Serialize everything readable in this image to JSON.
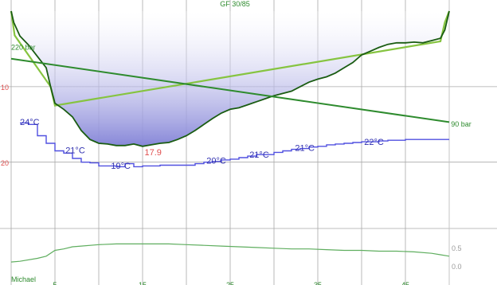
{
  "chart_data": {
    "type": "line",
    "title": "GF 30/85",
    "x_range": [
      0,
      50
    ],
    "x_tick_labels": [
      {
        "x": 5,
        "label": "5"
      },
      {
        "x": 15,
        "label": "15"
      },
      {
        "x": 25,
        "label": "25"
      },
      {
        "x": 35,
        "label": "35"
      },
      {
        "x": 45,
        "label": "45"
      }
    ],
    "depth_axis": {
      "range": [
        0,
        23.3
      ],
      "tick_labels": [
        "10",
        "20"
      ]
    },
    "side_panel": {
      "tick_labels": [
        "0.5",
        "0.0"
      ]
    },
    "footer_label": "Michael",
    "depth_profile": {
      "color": "#1a5c12",
      "fill_color": "#8686d8",
      "points": [
        [
          0,
          0
        ],
        [
          0.3,
          1.5
        ],
        [
          1,
          3.3
        ],
        [
          2,
          4.5
        ],
        [
          3,
          6
        ],
        [
          4,
          7.5
        ],
        [
          4.5,
          10
        ],
        [
          5,
          12.2
        ],
        [
          6,
          13
        ],
        [
          7,
          14
        ],
        [
          8,
          15.8
        ],
        [
          9,
          17
        ],
        [
          10,
          17.5
        ],
        [
          11,
          17.6
        ],
        [
          12,
          17.8
        ],
        [
          13,
          17.8
        ],
        [
          14,
          17.6
        ],
        [
          15,
          17.9
        ],
        [
          16,
          17.7
        ],
        [
          17,
          17.5
        ],
        [
          18,
          17.4
        ],
        [
          19,
          17
        ],
        [
          20,
          16.5
        ],
        [
          21,
          15.8
        ],
        [
          22,
          15
        ],
        [
          23,
          14.2
        ],
        [
          24,
          13.5
        ],
        [
          25,
          13
        ],
        [
          26,
          12.8
        ],
        [
          27,
          12.4
        ],
        [
          28,
          12
        ],
        [
          29,
          11.6
        ],
        [
          30,
          11.2
        ],
        [
          31,
          10.9
        ],
        [
          32,
          10.6
        ],
        [
          33,
          10
        ],
        [
          34,
          9.4
        ],
        [
          35,
          9
        ],
        [
          36,
          8.7
        ],
        [
          37,
          8.2
        ],
        [
          38,
          7.5
        ],
        [
          39,
          6.8
        ],
        [
          40,
          5.8
        ],
        [
          41,
          5.3
        ],
        [
          42,
          4.8
        ],
        [
          43,
          4.4
        ],
        [
          44,
          4.2
        ],
        [
          45,
          4.2
        ],
        [
          46,
          4.1
        ],
        [
          47,
          4.2
        ],
        [
          48,
          3.9
        ],
        [
          49,
          3.6
        ],
        [
          49.5,
          2.5
        ],
        [
          50,
          0
        ]
      ]
    },
    "ceiling": {
      "color": "#86c440",
      "points": [
        [
          0,
          0
        ],
        [
          0.4,
          3.2
        ],
        [
          4.5,
          10
        ],
        [
          5,
          12.5
        ],
        [
          49,
          4
        ],
        [
          49.5,
          1.5
        ],
        [
          50,
          0
        ]
      ]
    },
    "pressure": {
      "color": "#2e8b2e",
      "points": [
        [
          0,
          6.3
        ],
        [
          50,
          14.7
        ]
      ],
      "labels": [
        {
          "x": 0,
          "y": 5.1,
          "anchor": "start",
          "text": "220 bar"
        },
        {
          "x": 50.2,
          "y": 15.3,
          "anchor": "start",
          "text": "90 bar"
        }
      ]
    },
    "temperature": {
      "color": "#5050e0",
      "points": [
        [
          1,
          14.8
        ],
        [
          2,
          15
        ],
        [
          3,
          16.5
        ],
        [
          4,
          17.5
        ],
        [
          5,
          18.5
        ],
        [
          6,
          18.8
        ],
        [
          7,
          19.5
        ],
        [
          8,
          20
        ],
        [
          9,
          20.1
        ],
        [
          10,
          20.5
        ],
        [
          11,
          20.5
        ],
        [
          12,
          20.6
        ],
        [
          13,
          20.2
        ],
        [
          14,
          20.6
        ],
        [
          15,
          20.5
        ],
        [
          16,
          20.5
        ],
        [
          17,
          20.4
        ],
        [
          18,
          20.4
        ],
        [
          19,
          20.4
        ],
        [
          20,
          20.4
        ],
        [
          21,
          20.2
        ],
        [
          22,
          20
        ],
        [
          23,
          19.9
        ],
        [
          24,
          19.7
        ],
        [
          25,
          19.6
        ],
        [
          26,
          19.4
        ],
        [
          27,
          19.2
        ],
        [
          28,
          19
        ],
        [
          29,
          19
        ],
        [
          30,
          18.7
        ],
        [
          31,
          18.5
        ],
        [
          32,
          18.3
        ],
        [
          33,
          18.2
        ],
        [
          34,
          18
        ],
        [
          35,
          17.9
        ],
        [
          36,
          17.7
        ],
        [
          37,
          17.6
        ],
        [
          38,
          17.5
        ],
        [
          39,
          17.4
        ],
        [
          40,
          17.3
        ],
        [
          41,
          17.3
        ],
        [
          42,
          17.2
        ],
        [
          43,
          17.1
        ],
        [
          44,
          17.1
        ],
        [
          45,
          17
        ],
        [
          46,
          17
        ],
        [
          47,
          17
        ],
        [
          48,
          17
        ],
        [
          49,
          17
        ],
        [
          50,
          17
        ]
      ],
      "labels": [
        {
          "x": 1,
          "y": 15.1,
          "text": "24°C"
        },
        {
          "x": 6.2,
          "y": 18.8,
          "text": "21°C"
        },
        {
          "x": 11.4,
          "y": 20.9,
          "text": "19°C"
        },
        {
          "x": 22.3,
          "y": 20.2,
          "text": "20°C"
        },
        {
          "x": 27.2,
          "y": 19.4,
          "text": "21°C"
        },
        {
          "x": 32.4,
          "y": 18.5,
          "text": "21°C"
        },
        {
          "x": 40.3,
          "y": 17.7,
          "text": "22°C"
        }
      ]
    },
    "min_depth_label": {
      "x": 16.2,
      "y": 19.1,
      "text": "17.9",
      "color": "#e05050"
    },
    "bottom_series": {
      "color": "#5fae5f",
      "range": [
        0,
        0.55
      ],
      "points": [
        [
          0,
          0.12
        ],
        [
          1,
          0.13
        ],
        [
          3,
          0.17
        ],
        [
          4,
          0.2
        ],
        [
          5,
          0.28
        ],
        [
          6,
          0.3
        ],
        [
          7,
          0.33
        ],
        [
          8,
          0.34
        ],
        [
          10,
          0.36
        ],
        [
          12,
          0.37
        ],
        [
          14,
          0.37
        ],
        [
          16,
          0.37
        ],
        [
          18,
          0.37
        ],
        [
          20,
          0.36
        ],
        [
          22,
          0.35
        ],
        [
          24,
          0.34
        ],
        [
          26,
          0.33
        ],
        [
          28,
          0.32
        ],
        [
          30,
          0.31
        ],
        [
          32,
          0.3
        ],
        [
          34,
          0.3
        ],
        [
          36,
          0.29
        ],
        [
          38,
          0.28
        ],
        [
          40,
          0.28
        ],
        [
          42,
          0.27
        ],
        [
          44,
          0.27
        ],
        [
          46,
          0.26
        ],
        [
          48,
          0.24
        ],
        [
          49,
          0.22
        ],
        [
          50,
          0.2
        ]
      ]
    }
  }
}
